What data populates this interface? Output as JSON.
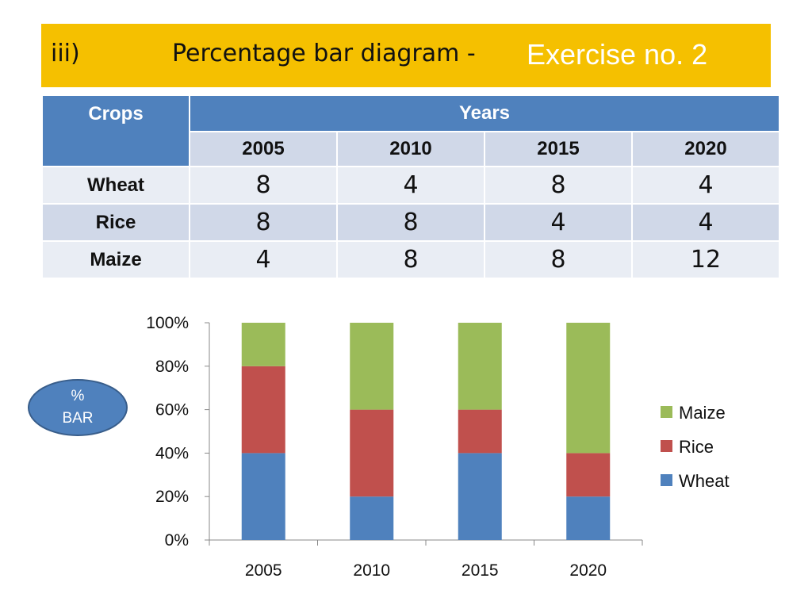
{
  "title": {
    "number": "iii)",
    "main": "Percentage bar diagram -",
    "exercise": "Exercise no. 2"
  },
  "table": {
    "crops_header": "Crops",
    "years_header": "Years",
    "years": [
      "2005",
      "2010",
      "2015",
      "2020"
    ],
    "rows": [
      {
        "crop": "Wheat",
        "values": [
          "8",
          "4",
          "8",
          "4"
        ]
      },
      {
        "crop": "Rice",
        "values": [
          "8",
          "8",
          "4",
          "4"
        ]
      },
      {
        "crop": "Maize",
        "values": [
          "4",
          "8",
          "8",
          "12"
        ]
      }
    ]
  },
  "badge": {
    "line1": "%",
    "line2": "BAR"
  },
  "colors": {
    "title_bg": "#F5C000",
    "header_blue": "#4F81BD",
    "wheat": "#4F81BD",
    "rice": "#C0504D",
    "maize": "#9BBB59"
  },
  "chart_data": {
    "type": "bar",
    "stacked": "percent",
    "title": "",
    "xlabel": "",
    "ylabel": "",
    "categories": [
      "2005",
      "2010",
      "2015",
      "2020"
    ],
    "series": [
      {
        "name": "Wheat",
        "values": [
          8,
          4,
          8,
          4
        ]
      },
      {
        "name": "Rice",
        "values": [
          8,
          8,
          4,
          4
        ]
      },
      {
        "name": "Maize",
        "values": [
          4,
          8,
          8,
          12
        ]
      }
    ],
    "yticks": [
      "0%",
      "20%",
      "40%",
      "60%",
      "80%",
      "100%"
    ],
    "ylim": [
      0,
      100
    ],
    "legend": {
      "position": "right",
      "order": [
        "Maize",
        "Rice",
        "Wheat"
      ]
    }
  }
}
